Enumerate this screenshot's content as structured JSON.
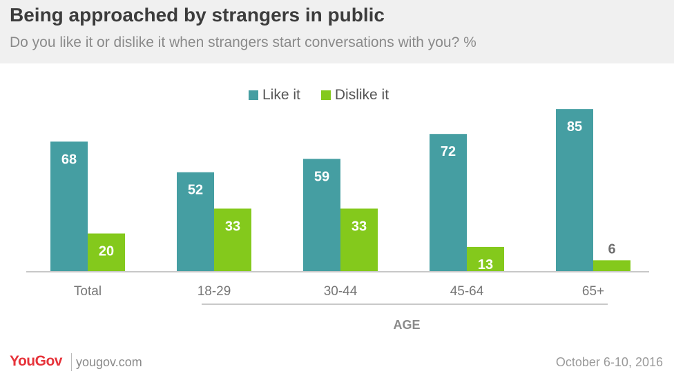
{
  "header": {
    "title": "Being approached by strangers in public",
    "subtitle": "Do you like it or dislike it when strangers start conversations with you? %"
  },
  "legend": {
    "like_label": "Like it",
    "dislike_label": "Dislike it"
  },
  "colors": {
    "like": "#459ea2",
    "dislike": "#84c91c",
    "header_bg": "#f0f0f0",
    "brand": "#e6333a"
  },
  "chart_data": {
    "type": "bar",
    "categories": [
      "Total",
      "18-29",
      "30-44",
      "45-64",
      "65+"
    ],
    "series": [
      {
        "name": "Like it",
        "values": [
          68,
          52,
          59,
          72,
          85
        ]
      },
      {
        "name": "Dislike it",
        "values": [
          20,
          33,
          33,
          13,
          6
        ]
      }
    ],
    "group_label": "AGE",
    "ylim": [
      0,
      100
    ],
    "grid": false,
    "legend_position": "top-center"
  },
  "footer": {
    "logo": "YouGov",
    "site": "yougov.com",
    "date": "October 6-10, 2016"
  }
}
